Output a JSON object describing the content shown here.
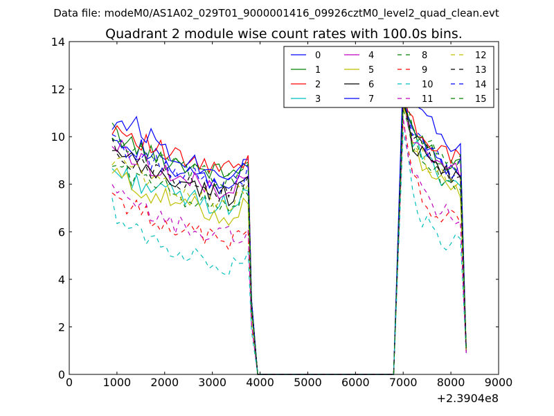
{
  "chart_data": {
    "type": "line",
    "suptitle": "Data file: modeM0/AS1A02_029T01_9000001416_09926cztM0_level2_quad_clean.evt",
    "title": "Quadrant 2 module wise count rates with 100.0s bins.",
    "xlabel": "",
    "ylabel": "",
    "x_offset_label": "+2.3904e8",
    "xlim": [
      0,
      9000
    ],
    "ylim": [
      0,
      14
    ],
    "xticks": [
      0,
      1000,
      2000,
      3000,
      4000,
      5000,
      6000,
      7000,
      8000,
      9000
    ],
    "yticks": [
      0,
      2,
      4,
      6,
      8,
      10,
      12,
      14
    ],
    "grid": false,
    "legend_position": "top-right",
    "legend_columns": 4,
    "segment1": {
      "start": 900,
      "end": 3750,
      "drop_to": 3950,
      "base_level": 0.0
    },
    "segment2": {
      "rise_from": 6800,
      "start": 7000,
      "end": 8200,
      "drop_end": 8320
    },
    "series": [
      {
        "name": "0",
        "color": "#0000ff",
        "dash": "solid",
        "seg1": [
          10.3,
          9.6,
          9.3,
          8.6,
          8.3,
          8.1,
          7.9,
          8.9
        ],
        "seg2": [
          12.0,
          10.3,
          9.8,
          9.4,
          8.9,
          8.6,
          8.8,
          1.1
        ]
      },
      {
        "name": "1",
        "color": "#008000",
        "dash": "solid",
        "seg1": [
          10.2,
          9.7,
          9.2,
          9.0,
          8.8,
          8.6,
          8.4,
          8.9
        ],
        "seg2": [
          11.9,
          10.4,
          10.0,
          9.5,
          9.1,
          8.9,
          9.0,
          1.1
        ]
      },
      {
        "name": "2",
        "color": "#ff0000",
        "dash": "solid",
        "seg1": [
          10.5,
          10.1,
          9.6,
          9.2,
          8.9,
          8.7,
          8.6,
          8.9
        ],
        "seg2": [
          11.8,
          10.5,
          10.1,
          9.7,
          9.3,
          9.1,
          9.1,
          1.1
        ]
      },
      {
        "name": "3",
        "color": "#00bfbf",
        "dash": "solid",
        "seg1": [
          8.6,
          8.2,
          7.9,
          7.6,
          7.4,
          7.2,
          7.1,
          7.7
        ],
        "seg2": [
          11.5,
          9.7,
          9.2,
          8.8,
          8.4,
          8.1,
          8.2,
          1.0
        ]
      },
      {
        "name": "4",
        "color": "#bf00bf",
        "dash": "solid",
        "seg1": [
          9.7,
          9.2,
          8.8,
          8.4,
          8.1,
          7.9,
          7.7,
          8.3
        ],
        "seg2": [
          11.7,
          10.0,
          9.5,
          9.1,
          8.7,
          8.5,
          8.6,
          1.1
        ]
      },
      {
        "name": "5",
        "color": "#bfbf00",
        "dash": "solid",
        "seg1": [
          8.5,
          8.0,
          7.6,
          7.3,
          7.1,
          6.9,
          6.6,
          7.4
        ],
        "seg2": [
          11.3,
          9.4,
          8.9,
          8.5,
          8.1,
          7.9,
          7.8,
          1.0
        ]
      },
      {
        "name": "6",
        "color": "#000000",
        "dash": "solid",
        "seg1": [
          9.3,
          8.9,
          8.5,
          8.2,
          7.9,
          7.7,
          7.5,
          8.2
        ],
        "seg2": [
          11.4,
          9.8,
          9.3,
          8.9,
          8.6,
          8.4,
          8.5,
          1.1
        ]
      },
      {
        "name": "7",
        "color": "#0000ff",
        "dash": "solid",
        "seg1": [
          10.6,
          10.6,
          10.0,
          9.4,
          9.0,
          8.7,
          8.5,
          9.0
        ],
        "seg2": [
          12.8,
          12.0,
          11.1,
          10.5,
          10.0,
          9.6,
          9.8,
          0.9
        ]
      },
      {
        "name": "8",
        "color": "#008000",
        "dash": "dashed",
        "seg1": [
          8.9,
          8.4,
          8.0,
          7.7,
          7.4,
          7.2,
          7.1,
          7.7
        ],
        "seg2": [
          11.1,
          9.5,
          9.0,
          8.5,
          8.1,
          7.7,
          7.5,
          1.0
        ]
      },
      {
        "name": "9",
        "color": "#ff0000",
        "dash": "dashed",
        "seg1": [
          7.6,
          7.0,
          6.6,
          6.3,
          6.0,
          5.8,
          5.6,
          6.0
        ],
        "seg2": [
          10.7,
          8.2,
          7.5,
          7.0,
          6.7,
          6.5,
          6.6,
          0.9
        ]
      },
      {
        "name": "10",
        "color": "#00bfbf",
        "dash": "dashed",
        "seg1": [
          7.0,
          6.1,
          5.7,
          5.3,
          5.0,
          4.8,
          4.6,
          5.2
        ],
        "seg2": [
          10.2,
          7.5,
          6.6,
          6.0,
          5.6,
          5.5,
          5.8,
          0.9
        ]
      },
      {
        "name": "11",
        "color": "#bf00bf",
        "dash": "dashed",
        "seg1": [
          7.7,
          7.1,
          6.7,
          6.4,
          6.1,
          5.9,
          5.8,
          6.1
        ],
        "seg2": [
          10.8,
          8.3,
          7.6,
          7.2,
          6.8,
          6.6,
          6.7,
          0.9
        ]
      },
      {
        "name": "12",
        "color": "#bfbf00",
        "dash": "dashed",
        "seg1": [
          9.1,
          8.6,
          8.2,
          7.9,
          7.6,
          7.4,
          7.2,
          7.8
        ],
        "seg2": [
          11.2,
          9.6,
          9.1,
          8.7,
          8.3,
          8.0,
          7.9,
          1.0
        ]
      },
      {
        "name": "13",
        "color": "#000000",
        "dash": "dashed",
        "seg1": [
          9.5,
          9.0,
          8.6,
          8.3,
          8.0,
          7.8,
          7.6,
          8.2
        ],
        "seg2": [
          11.6,
          9.9,
          9.4,
          9.0,
          8.7,
          8.5,
          8.7,
          1.1
        ]
      },
      {
        "name": "14",
        "color": "#0000ff",
        "dash": "dashed",
        "seg1": [
          9.8,
          9.3,
          8.9,
          8.6,
          8.3,
          8.1,
          7.9,
          8.5
        ],
        "seg2": [
          11.9,
          10.2,
          9.7,
          9.3,
          8.9,
          8.6,
          8.8,
          1.1
        ]
      },
      {
        "name": "15",
        "color": "#008000",
        "dash": "dashed",
        "seg1": [
          10.0,
          9.5,
          9.1,
          8.8,
          8.5,
          8.3,
          8.1,
          8.7
        ],
        "seg2": [
          12.0,
          10.3,
          9.9,
          9.4,
          9.0,
          8.8,
          8.9,
          1.1
        ]
      }
    ]
  }
}
